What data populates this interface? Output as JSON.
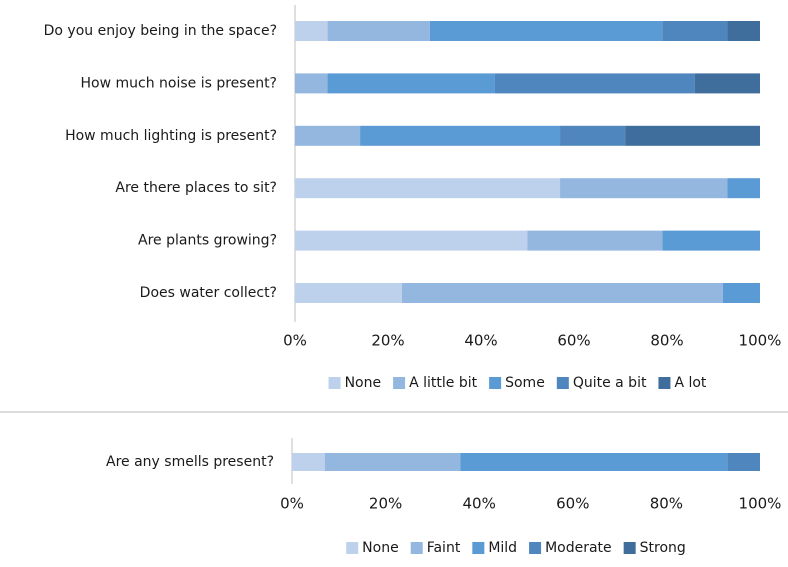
{
  "chart_data": [
    {
      "type": "bar",
      "orientation": "horizontal",
      "stacked": true,
      "percent": true,
      "categories": [
        "Do you enjoy being in the space?",
        "How much noise is present?",
        "How much lighting is present?",
        "Are there places to sit?",
        "Are plants growing?",
        "Does water collect?"
      ],
      "series": [
        {
          "name": "None",
          "color": "#bdd1ec",
          "values": [
            7,
            0,
            0,
            57,
            50,
            23
          ]
        },
        {
          "name": "A little bit",
          "color": "#94b7e0",
          "values": [
            22,
            7,
            14,
            36,
            29,
            69
          ]
        },
        {
          "name": "Some",
          "color": "#5b9bd5",
          "values": [
            50,
            36,
            43,
            7,
            21,
            8
          ]
        },
        {
          "name": "Quite a bit",
          "color": "#4f86bd",
          "values": [
            14,
            43,
            14,
            0,
            0,
            0
          ]
        },
        {
          "name": "A lot",
          "color": "#3f6e9d",
          "values": [
            7,
            14,
            29,
            0,
            0,
            0
          ]
        }
      ],
      "xlim": [
        0,
        100
      ],
      "xticks": [
        "0%",
        "20%",
        "40%",
        "60%",
        "80%",
        "100%"
      ],
      "legend_position": "bottom",
      "grid": false
    },
    {
      "type": "bar",
      "orientation": "horizontal",
      "stacked": true,
      "percent": true,
      "categories": [
        "Are any smells present?"
      ],
      "series": [
        {
          "name": "None",
          "color": "#bdd1ec",
          "values": [
            7
          ]
        },
        {
          "name": "Faint",
          "color": "#94b7e0",
          "values": [
            29
          ]
        },
        {
          "name": "Mild",
          "color": "#5b9bd5",
          "values": [
            57
          ]
        },
        {
          "name": "Moderate",
          "color": "#4f86bd",
          "values": [
            7
          ]
        },
        {
          "name": "Strong",
          "color": "#3f6e9d",
          "values": [
            0
          ]
        }
      ],
      "xlim": [
        0,
        100
      ],
      "xticks": [
        "0%",
        "20%",
        "40%",
        "60%",
        "80%",
        "100%"
      ],
      "legend_position": "bottom",
      "grid": false
    }
  ],
  "colors": {
    "axis_line": "#bfbfbf",
    "divider": "#d0d0d0",
    "text": "#1a1a1a"
  }
}
